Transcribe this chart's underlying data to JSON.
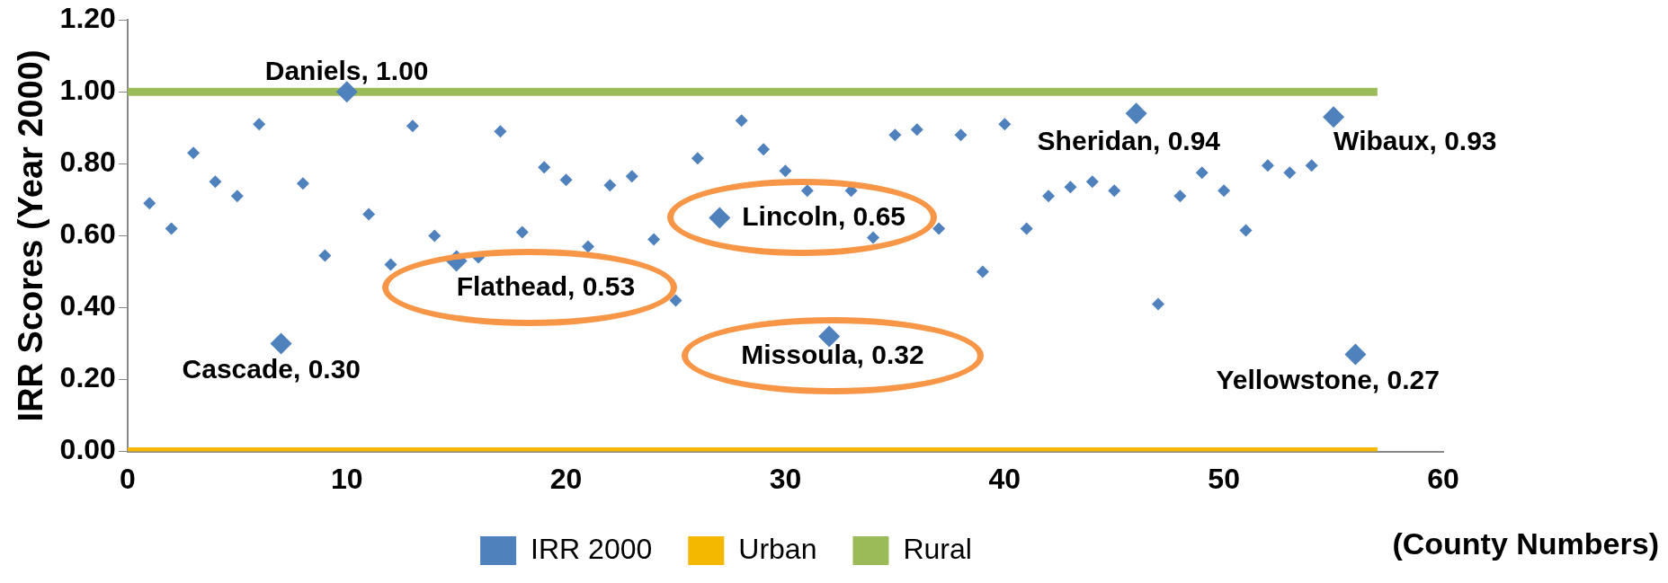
{
  "chart_data": {
    "type": "scatter",
    "xlabel": "(County Numbers)",
    "ylabel": "IRR Scores (Year 2000)",
    "xlim": [
      0,
      60
    ],
    "xticks": [
      0,
      10,
      20,
      30,
      40,
      50,
      60
    ],
    "ylim": [
      0,
      1.2
    ],
    "yticks": [
      {
        "value": 0,
        "label": "0.00"
      },
      {
        "value": 0.2,
        "label": "0.20"
      },
      {
        "value": 0.4,
        "label": "0.40"
      },
      {
        "value": 0.6,
        "label": "0.60"
      },
      {
        "value": 0.8,
        "label": "0.80"
      },
      {
        "value": 1.0,
        "label": "1.00"
      },
      {
        "value": 1.2,
        "label": "1.20"
      }
    ],
    "grid": false,
    "legend": "bottom",
    "series": [
      {
        "name": "IRR 2000",
        "color": "#4f81bd",
        "marker": "diamond",
        "x": [
          1,
          2,
          3,
          4,
          5,
          6,
          8,
          9,
          11,
          12,
          13,
          14,
          16,
          17,
          18,
          19,
          20,
          21,
          22,
          23,
          24,
          25,
          26,
          28,
          29,
          30,
          31,
          33,
          34,
          35,
          36,
          37,
          38,
          39,
          40,
          41,
          42,
          43,
          44,
          45,
          47,
          48,
          49,
          50,
          51,
          52,
          53,
          54
        ],
        "values": [
          0.69,
          0.62,
          0.83,
          0.75,
          0.71,
          0.91,
          0.745,
          0.545,
          0.66,
          0.52,
          0.905,
          0.6,
          0.54,
          0.89,
          0.61,
          0.79,
          0.755,
          0.57,
          0.74,
          0.765,
          0.59,
          0.42,
          0.815,
          0.92,
          0.84,
          0.78,
          0.725,
          0.725,
          0.595,
          0.88,
          0.895,
          0.62,
          0.88,
          0.5,
          0.91,
          0.62,
          0.71,
          0.735,
          0.75,
          0.725,
          0.41,
          0.71,
          0.775,
          0.725,
          0.615,
          0.795,
          0.775,
          0.795
        ]
      },
      {
        "color": "#4f81bd",
        "marker": "diamond",
        "x": [
          7,
          10,
          15,
          27,
          32,
          46,
          55,
          56
        ],
        "values": [
          0.3,
          1.0,
          0.53,
          0.65,
          0.32,
          0.94,
          0.93,
          0.27
        ]
      },
      {
        "name": "Urban",
        "type": "line",
        "marker": "none",
        "color": "#f5b800",
        "x": [
          0,
          57
        ],
        "values": [
          0,
          0
        ]
      },
      {
        "name": "Rural",
        "type": "line",
        "marker": "none",
        "color": "#9bbb59",
        "x": [
          0,
          57
        ],
        "values": [
          1,
          1
        ]
      }
    ],
    "annotations": [
      {
        "text": "Daniels, 1.00",
        "x": 10,
        "y": 1.0
      },
      {
        "text": "Cascade, 0.30",
        "x": 7,
        "y": 0.3
      },
      {
        "text": "Flathead, 0.53",
        "x": 15,
        "y": 0.53
      },
      {
        "text": "Lincoln, 0.65",
        "x": 27,
        "y": 0.65
      },
      {
        "text": "Missoula, 0.32",
        "x": 32,
        "y": 0.32
      },
      {
        "text": "Sheridan, 0.94",
        "x": 46,
        "y": 0.94
      },
      {
        "text": "Wibaux, 0.93",
        "x": 55,
        "y": 0.93
      },
      {
        "text": "Yellowstone, 0.27",
        "x": 56,
        "y": 0.27
      }
    ]
  }
}
